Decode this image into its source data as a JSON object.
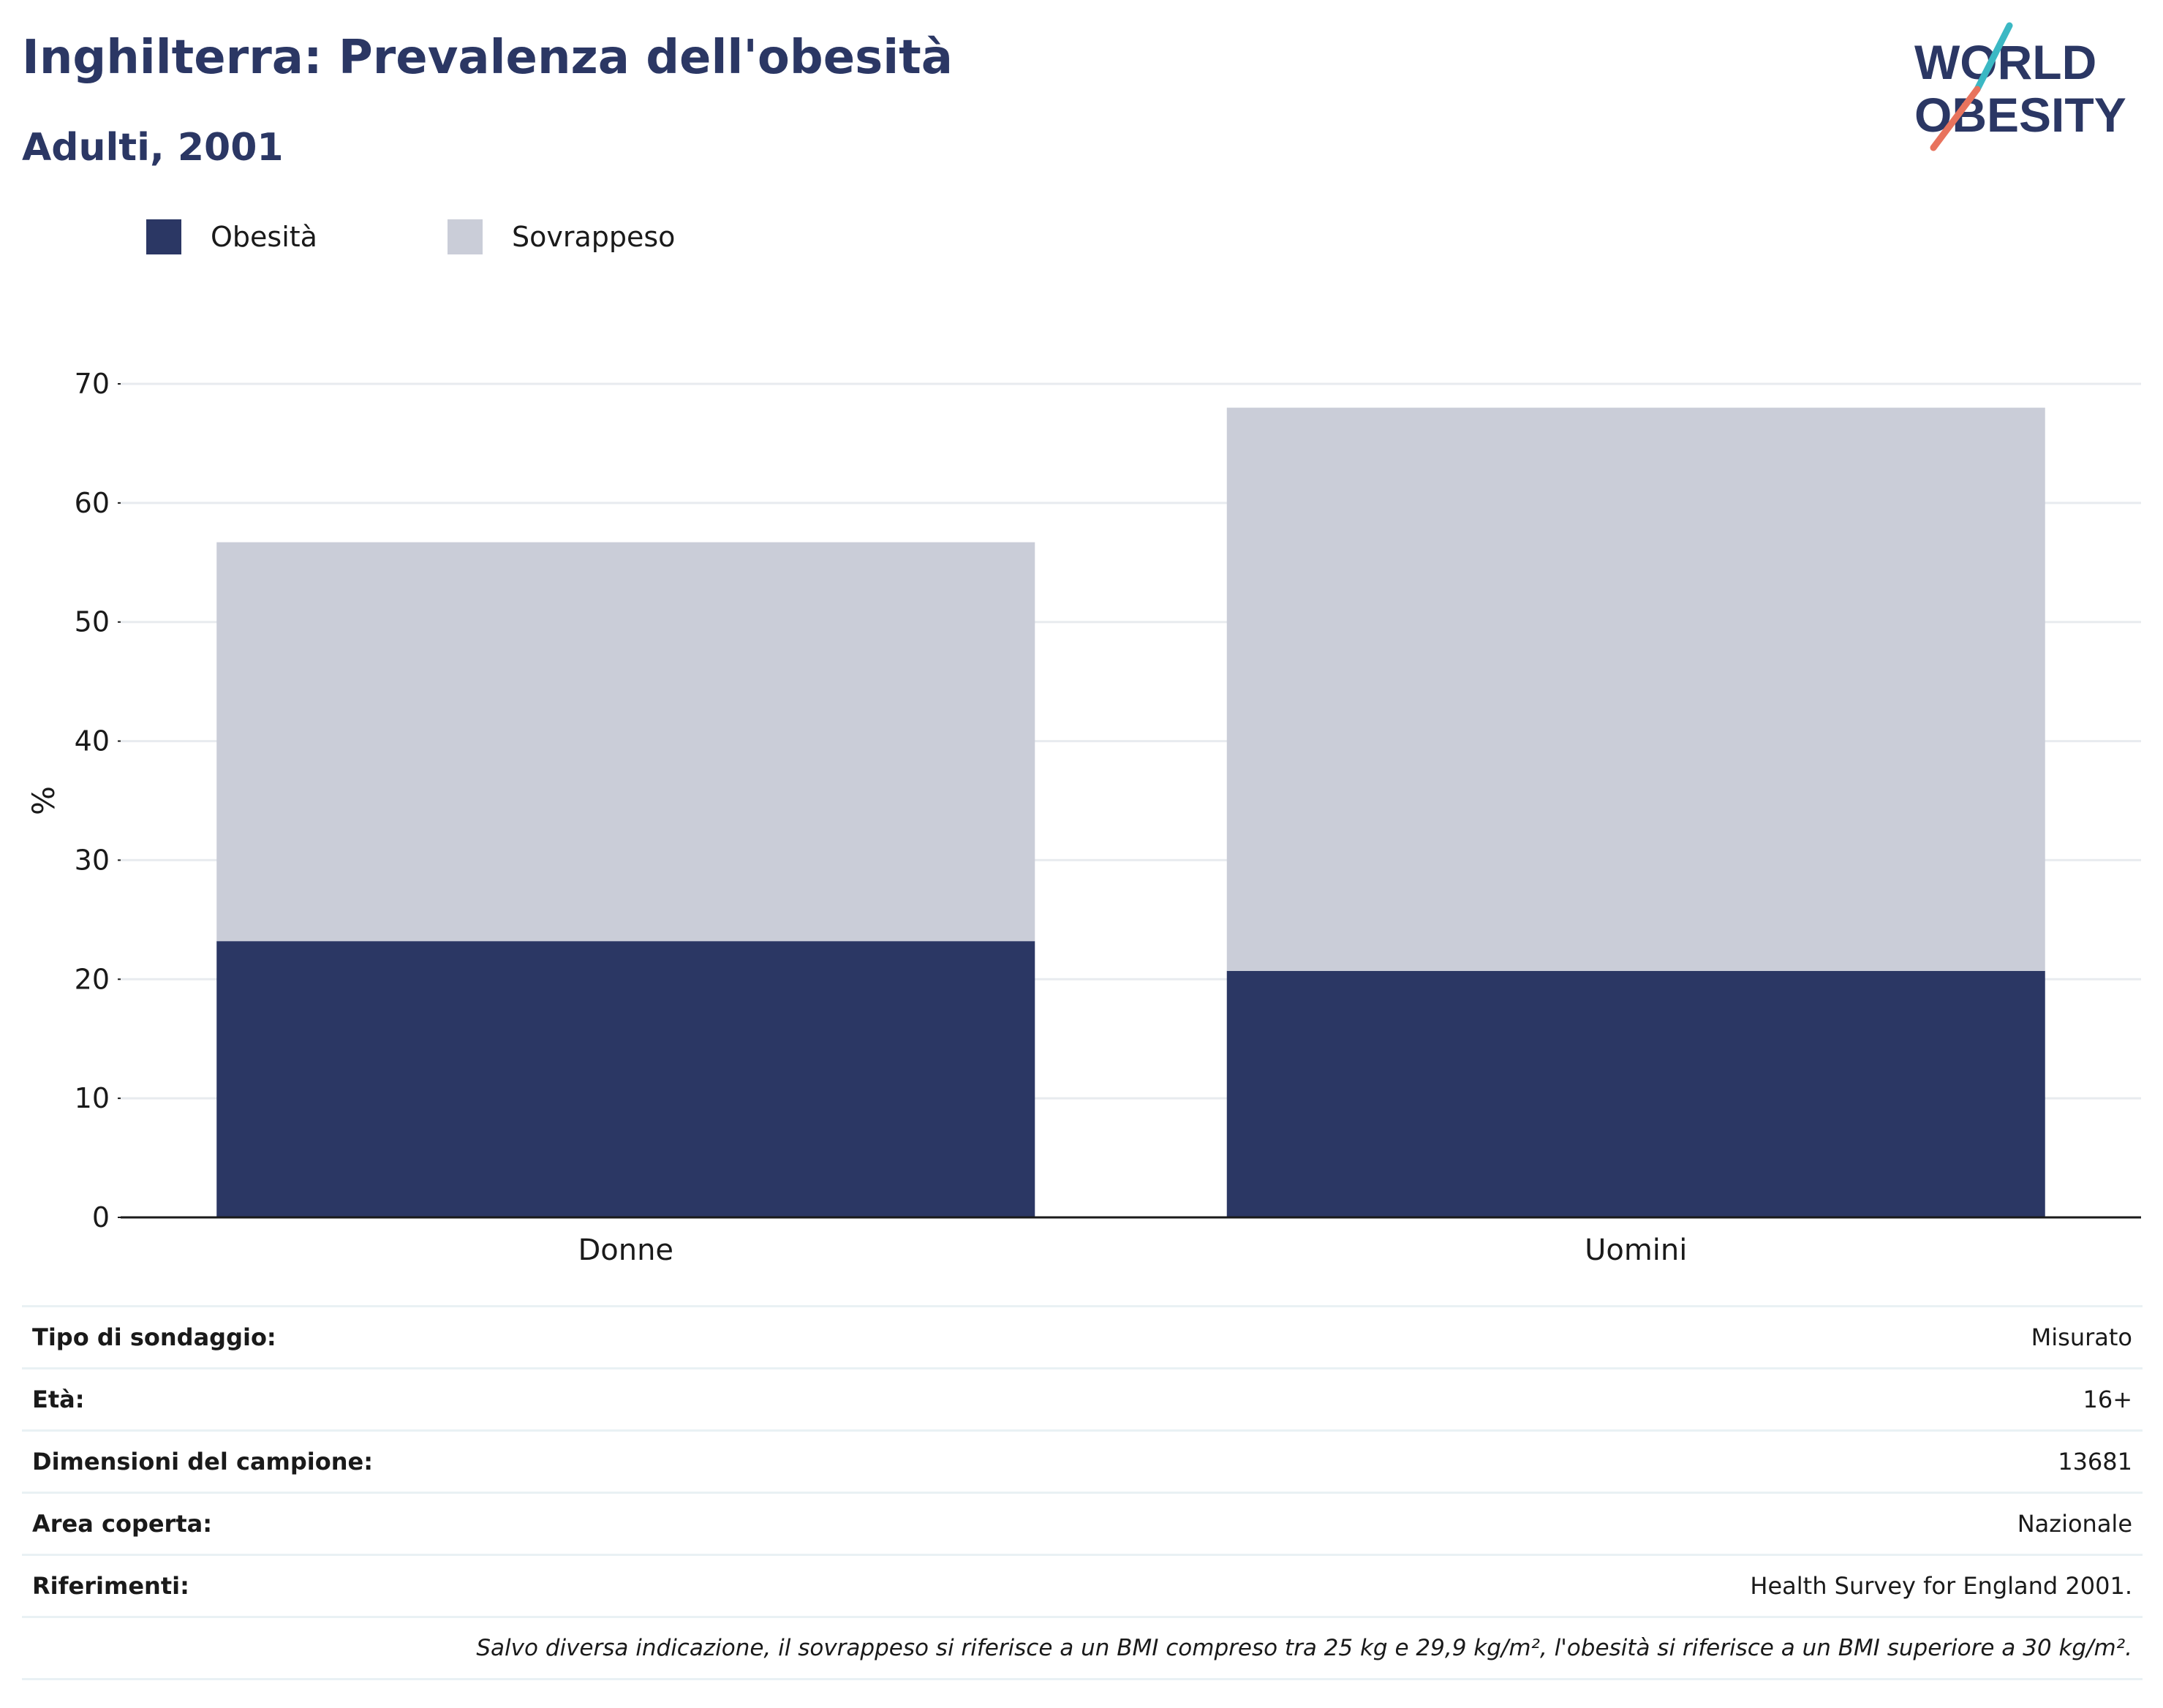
{
  "header": {
    "title": "Inghilterra: Prevalenza dell'obesità",
    "subtitle": "Adulti, 2001"
  },
  "logo": {
    "line1": "WORLD",
    "line2": "OBESITY",
    "colors": {
      "text": "#2b3764",
      "teal": "#3bb8c4",
      "coral": "#e8735d"
    }
  },
  "legend": [
    {
      "label": "Obesità",
      "color": "#2b3764"
    },
    {
      "label": "Sovrappeso",
      "color": "#cacdd8"
    }
  ],
  "chart_data": {
    "type": "bar",
    "stacked": true,
    "categories": [
      "Donne",
      "Uomini"
    ],
    "series": [
      {
        "name": "Obesità",
        "values": [
          23.2,
          20.7
        ],
        "color": "#2b3764"
      },
      {
        "name": "Sovrappeso",
        "values": [
          33.5,
          47.3
        ],
        "color": "#cacdd8"
      }
    ],
    "ylabel": "%",
    "xlabel": "",
    "ylim": [
      0,
      70
    ],
    "yticks": [
      0,
      10,
      20,
      30,
      40,
      50,
      60,
      70
    ],
    "grid": true,
    "legend_position": "top-left"
  },
  "info": {
    "rows": [
      {
        "label": "Tipo di sondaggio:",
        "value": "Misurato"
      },
      {
        "label": "Età:",
        "value": "16+"
      },
      {
        "label": "Dimensioni del campione:",
        "value": "13681"
      },
      {
        "label": "Area coperta:",
        "value": "Nazionale"
      },
      {
        "label": "Riferimenti:",
        "value": "Health Survey for England 2001."
      }
    ],
    "note": "Salvo diversa indicazione, il sovrappeso si riferisce a un BMI compreso tra 25 kg e 29,9 kg/m², l'obesità si riferisce a un BMI superiore a 30 kg/m²."
  }
}
